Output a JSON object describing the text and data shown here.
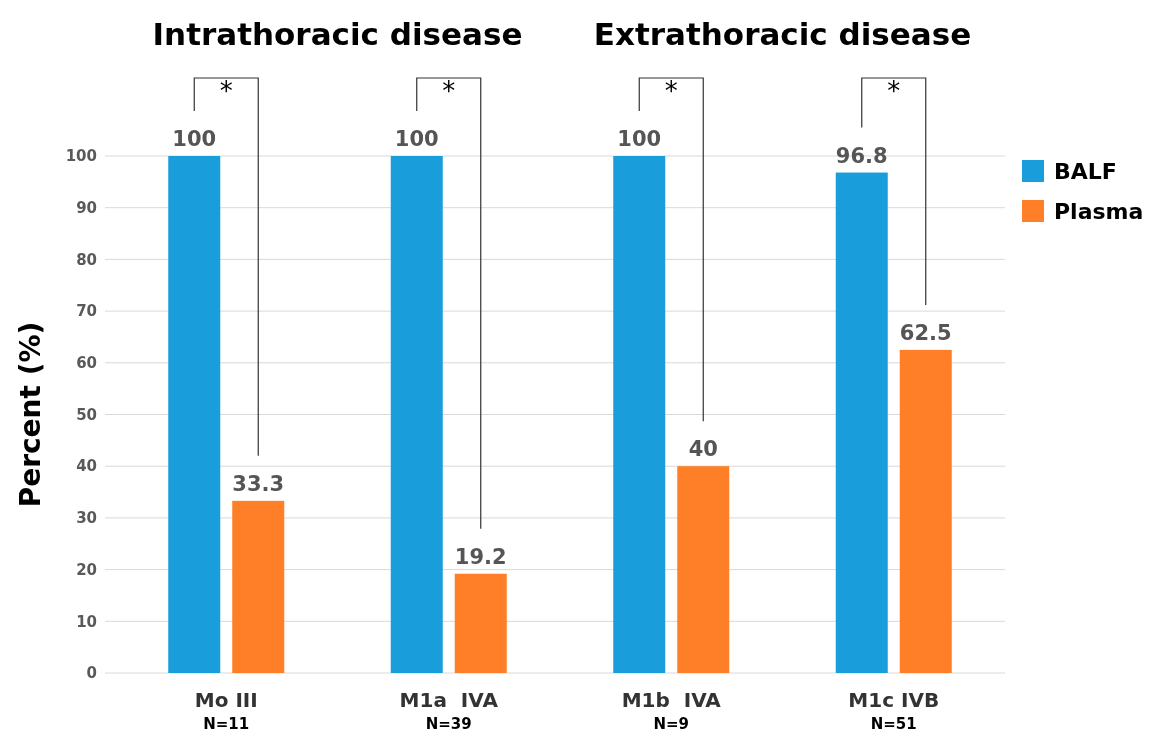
{
  "chart_data": {
    "type": "bar",
    "ylabel": "Percent (%)",
    "categories": [
      "Mo III\nN=11",
      "M1a  IVA\nN=39",
      "M1b  IVA\nN=9",
      "M1c IVB\nN=51"
    ],
    "series": [
      {
        "name": "BALF",
        "color": "#1a9ddb",
        "values": [
          100,
          100,
          100,
          96.8
        ]
      },
      {
        "name": "Plasma",
        "color": "#fe7f27",
        "values": [
          33.3,
          19.2,
          40,
          62.5
        ]
      }
    ],
    "ylim": [
      0,
      100
    ],
    "yticks": [
      0,
      10,
      20,
      30,
      40,
      50,
      60,
      70,
      80,
      90,
      100
    ],
    "grid": "y",
    "legend": "right",
    "data_labels": true,
    "annotations": [
      "Intrathoracic disease",
      "Extrathoracic disease",
      "*",
      "*",
      "*",
      "*"
    ]
  }
}
